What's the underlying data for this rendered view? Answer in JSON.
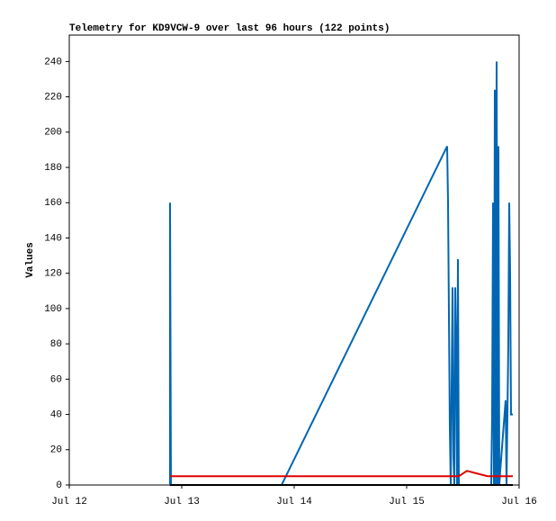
{
  "chart_data": {
    "type": "line",
    "title": "Telemetry for KD9VCW-9 over last 96 hours (122 points)",
    "y_label": "Values",
    "xlim": [
      12,
      16
    ],
    "xticks": [
      {
        "value": 12,
        "label": "Jul 12"
      },
      {
        "value": 13,
        "label": "Jul 13"
      },
      {
        "value": 14,
        "label": "Jul 14"
      },
      {
        "value": 15,
        "label": "Jul 15"
      },
      {
        "value": 16,
        "label": "Jul 16"
      }
    ],
    "ylim": [
      0,
      255
    ],
    "yticks": [
      0,
      20,
      40,
      60,
      80,
      100,
      120,
      140,
      160,
      180,
      200,
      220,
      240
    ],
    "grid": false,
    "series": [
      {
        "color": "#0066b3",
        "x": [
          12.896,
          12.896,
          12.904,
          13.888,
          15.36,
          15.368,
          15.376,
          15.384,
          15.392,
          15.4,
          15.408,
          15.416,
          15.424,
          15.432,
          15.44,
          15.448,
          15.456,
          15.464,
          15.752,
          15.76,
          15.768,
          15.776,
          15.784,
          15.792,
          15.8,
          15.808,
          15.816,
          15.824,
          15.832,
          15.88,
          15.888,
          15.904,
          15.912,
          15.92,
          15.928,
          15.944
        ],
        "values": [
          0,
          160,
          0,
          0,
          192,
          160,
          96,
          32,
          0,
          56,
          112,
          16,
          0,
          112,
          80,
          0,
          128,
          0,
          0,
          40,
          160,
          0,
          224,
          0,
          240,
          0,
          192,
          0,
          8,
          48,
          0,
          80,
          160,
          120,
          40,
          40
        ]
      },
      {
        "color": "#e00000",
        "x": [
          12.896,
          15.464,
          15.536,
          15.72,
          15.944
        ],
        "values": [
          5,
          5,
          8,
          5,
          5
        ]
      },
      {
        "color": "#000000",
        "x": [
          12.896,
          15.944
        ],
        "values": [
          0,
          0
        ]
      }
    ]
  }
}
